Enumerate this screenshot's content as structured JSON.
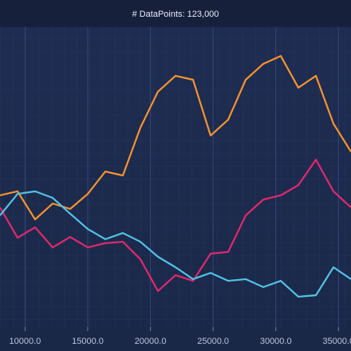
{
  "chart_data": {
    "type": "line",
    "title": "# DataPoints: 123,000",
    "x": [
      8000,
      9400,
      10800,
      12200,
      13600,
      15000,
      16400,
      17800,
      19200,
      20600,
      22000,
      23400,
      24800,
      26200,
      27600,
      29000,
      30400,
      31800,
      33200,
      34600,
      36000
    ],
    "series": [
      {
        "color": "#f7932f",
        "values": [
          42.3,
          43.7,
          33.8,
          39.4,
          37.5,
          42.8,
          50.7,
          49.3,
          66.2,
          78.9,
          84.5,
          83.1,
          63.4,
          69.0,
          83.1,
          88.7,
          91.5,
          80.3,
          84.5,
          67.6,
          57.7
        ]
      },
      {
        "color": "#e2286f",
        "values": [
          38.0,
          27.3,
          31.0,
          23.9,
          27.6,
          23.9,
          25.4,
          25.9,
          19.7,
          8.5,
          14.1,
          12.1,
          21.7,
          22.3,
          35.2,
          40.8,
          42.3,
          45.9,
          54.9,
          43.7,
          38.0
        ]
      },
      {
        "color": "#52c2e6",
        "values": [
          35.2,
          42.8,
          43.7,
          41.4,
          35.8,
          30.4,
          26.8,
          29.0,
          25.9,
          20.6,
          16.9,
          12.7,
          14.9,
          12.1,
          12.7,
          9.9,
          12.1,
          6.5,
          7.0,
          16.9,
          12.7
        ]
      }
    ],
    "xlim": [
      8000,
      36000
    ],
    "xticks": [
      {
        "value": 10000,
        "label": "10000.0"
      },
      {
        "value": 15000,
        "label": "15000.0"
      },
      {
        "value": 20000,
        "label": "20000.0"
      },
      {
        "value": 25000,
        "label": "25000.0"
      },
      {
        "value": 30000,
        "label": "30000.0"
      },
      {
        "value": 35000,
        "label": "35000.0"
      }
    ],
    "ylim": [
      0,
      100
    ],
    "grid": true
  }
}
